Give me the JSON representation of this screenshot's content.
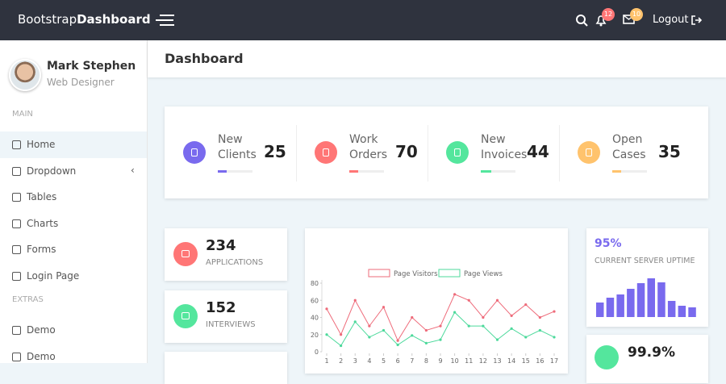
{
  "navbar": {
    "brand_regular": "Bootstrap",
    "brand_bold": "Dashboard",
    "notifications": "12",
    "messages": "10",
    "logout": "Logout"
  },
  "sidebar": {
    "user": {
      "name": "Mark Stephen",
      "role": "Web Designer"
    },
    "sections": [
      {
        "heading": "MAIN",
        "items": [
          "Home",
          "Dropdown",
          "Tables",
          "Charts",
          "Forms",
          "Login Page"
        ]
      },
      {
        "heading": "EXTRAS",
        "items": [
          "Demo",
          "Demo"
        ]
      }
    ]
  },
  "header": {
    "title": "Dashboard"
  },
  "stats": [
    {
      "label": "New Clients",
      "value": 25,
      "progress": 25,
      "color": "#796aee"
    },
    {
      "label": "Work Orders",
      "value": 70,
      "progress": 25,
      "color": "#ff7676"
    },
    {
      "label": "New Invoices",
      "value": 44,
      "progress": 30,
      "color": "#54e69d"
    },
    {
      "label": "Open Cases",
      "value": 35,
      "progress": 25,
      "color": "#ffc36d"
    }
  ],
  "cards": [
    {
      "value": 234,
      "label": "APPLICATIONS",
      "color": "#ff7676"
    },
    {
      "value": 152,
      "label": "INTERVIEWS",
      "color": "#54e69d"
    }
  ],
  "chart_data": {
    "type": "line",
    "x": [
      1,
      2,
      3,
      4,
      5,
      6,
      7,
      8,
      9,
      10,
      11,
      12,
      13,
      14,
      15,
      16,
      17
    ],
    "series": [
      {
        "name": "Page Visitors",
        "color": "#ee6b7a",
        "values": [
          50,
          20,
          60,
          30,
          52,
          13,
          40,
          25,
          30,
          67,
          60,
          40,
          60,
          42,
          55,
          40,
          47
        ]
      },
      {
        "name": "Page Views",
        "color": "#4cd99b",
        "values": [
          20,
          7,
          35,
          17,
          25,
          8,
          19,
          10,
          14,
          46,
          30,
          30,
          14,
          27,
          17,
          25,
          17
        ]
      }
    ],
    "xlim": [
      1,
      17
    ],
    "xticks": [
      1,
      2,
      3,
      4,
      5,
      6,
      7,
      8,
      9,
      10,
      11,
      12,
      13,
      14,
      15,
      16,
      17
    ],
    "ylim": [
      0,
      80
    ],
    "yticks": [
      0,
      20,
      40,
      60,
      80
    ],
    "legend": "top"
  },
  "uptime": {
    "value": "95%",
    "label": "CURRENT SERVER UPTIME",
    "color": "#796aee",
    "bars": [
      18,
      24,
      28,
      35,
      42,
      48,
      43,
      20,
      14,
      12
    ]
  },
  "uptime2": {
    "value": "99.9%",
    "color": "#54e69d"
  }
}
